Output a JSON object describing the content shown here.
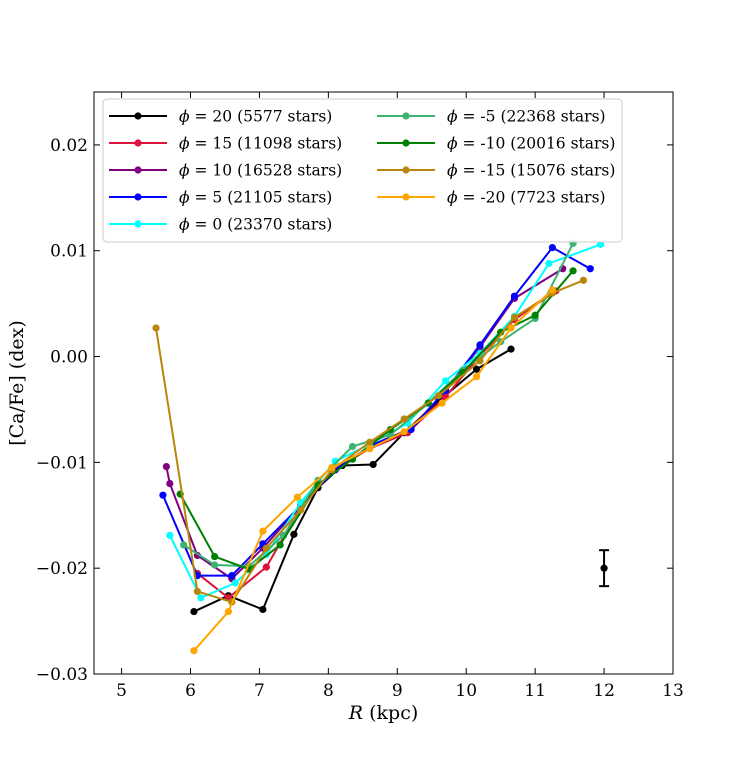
{
  "chart_data": {
    "type": "line",
    "title": "",
    "xlabel_var": "R",
    "xlabel_unit": "(kpc)",
    "ylabel": "[Ca/Fe] (dex)",
    "xlim": [
      4.6,
      13
    ],
    "ylim": [
      -0.03,
      0.025
    ],
    "xticks": [
      5,
      6,
      7,
      8,
      9,
      10,
      11,
      12,
      13
    ],
    "yticks": [
      -0.03,
      -0.02,
      -0.01,
      0.0,
      0.01,
      0.02
    ],
    "ytick_labels": [
      "−0.03",
      "−0.02",
      "−0.01",
      "0.00",
      "0.01",
      "0.02"
    ],
    "legend_position": "upper-left",
    "series": [
      {
        "name": "phi_20",
        "label_prefix": "ϕ = ",
        "label_value": "20 (5577 stars)",
        "color": "#000000",
        "points": [
          [
            6.05,
            -0.0241
          ],
          [
            6.55,
            -0.0226
          ],
          [
            7.05,
            -0.0239
          ],
          [
            7.5,
            -0.0168
          ],
          [
            7.85,
            -0.0124
          ],
          [
            8.2,
            -0.0103
          ],
          [
            8.65,
            -0.0102
          ],
          [
            9.1,
            -0.0072
          ],
          [
            9.6,
            -0.0042
          ],
          [
            10.15,
            -0.0012
          ],
          [
            10.65,
            0.0007
          ]
        ]
      },
      {
        "name": "phi_15",
        "label_prefix": "ϕ = ",
        "label_value": "15 (11098 stars)",
        "color": "#dc143c",
        "points": [
          [
            6.1,
            -0.0205
          ],
          [
            6.55,
            -0.0228
          ],
          [
            7.1,
            -0.0199
          ],
          [
            7.55,
            -0.0148
          ],
          [
            8.05,
            -0.0108
          ],
          [
            8.6,
            -0.0087
          ],
          [
            9.15,
            -0.0072
          ],
          [
            9.7,
            -0.0038
          ],
          [
            10.2,
            0.0001
          ],
          [
            10.7,
            0.0035
          ],
          [
            11.3,
            0.0062
          ]
        ]
      },
      {
        "name": "phi_10",
        "label_prefix": "ϕ = ",
        "label_value": "10 (16528 stars)",
        "color": "#800080",
        "points": [
          [
            5.65,
            -0.0104
          ],
          [
            5.7,
            -0.012
          ],
          [
            6.1,
            -0.0188
          ],
          [
            6.6,
            -0.021
          ],
          [
            7.05,
            -0.0181
          ],
          [
            7.6,
            -0.0141
          ],
          [
            8.1,
            -0.0107
          ],
          [
            8.65,
            -0.0083
          ],
          [
            9.2,
            -0.0068
          ],
          [
            9.7,
            -0.0032
          ],
          [
            10.2,
            0.0009
          ],
          [
            10.7,
            0.0055
          ],
          [
            11.4,
            0.0083
          ]
        ]
      },
      {
        "name": "phi_5",
        "label_prefix": "ϕ = ",
        "label_value": "5 (21105 stars)",
        "color": "#0000ff",
        "points": [
          [
            5.6,
            -0.0131
          ],
          [
            6.1,
            -0.0207
          ],
          [
            6.6,
            -0.0207
          ],
          [
            7.05,
            -0.0177
          ],
          [
            7.6,
            -0.0141
          ],
          [
            8.1,
            -0.0107
          ],
          [
            8.65,
            -0.0083
          ],
          [
            9.2,
            -0.0069
          ],
          [
            9.7,
            -0.0032
          ],
          [
            10.2,
            0.0011
          ],
          [
            10.7,
            0.0057
          ],
          [
            11.25,
            0.0103
          ],
          [
            11.8,
            0.0083
          ]
        ]
      },
      {
        "name": "phi_0",
        "label_prefix": "ϕ = ",
        "label_value": "0 (23370 stars)",
        "color": "#00ffff",
        "points": [
          [
            5.7,
            -0.0169
          ],
          [
            6.15,
            -0.0228
          ],
          [
            6.65,
            -0.0214
          ],
          [
            7.1,
            -0.0187
          ],
          [
            7.6,
            -0.0138
          ],
          [
            8.1,
            -0.0099
          ],
          [
            8.6,
            -0.0083
          ],
          [
            9.15,
            -0.0063
          ],
          [
            9.7,
            -0.0023
          ],
          [
            10.2,
            0.0003
          ],
          [
            10.7,
            0.0038
          ],
          [
            11.2,
            0.0088
          ],
          [
            11.95,
            0.0106
          ]
        ]
      },
      {
        "name": "phi_m5",
        "label_prefix": "ϕ = ",
        "label_value": "-5 (22368 stars)",
        "color": "#3cb371",
        "points": [
          [
            5.9,
            -0.0178
          ],
          [
            6.35,
            -0.0197
          ],
          [
            6.85,
            -0.0198
          ],
          [
            7.35,
            -0.0169
          ],
          [
            7.85,
            -0.0117
          ],
          [
            8.35,
            -0.0085
          ],
          [
            8.9,
            -0.0074
          ],
          [
            9.45,
            -0.0044
          ],
          [
            9.95,
            -0.0013
          ],
          [
            10.5,
            0.0014
          ],
          [
            11.0,
            0.0036
          ],
          [
            11.55,
            0.0107
          ]
        ]
      },
      {
        "name": "phi_m10",
        "label_prefix": "ϕ = ",
        "label_value": "-10 (20016 stars)",
        "color": "#008000",
        "points": [
          [
            5.85,
            -0.013
          ],
          [
            6.35,
            -0.0189
          ],
          [
            6.85,
            -0.0201
          ],
          [
            7.3,
            -0.0178
          ],
          [
            7.85,
            -0.0121
          ],
          [
            8.35,
            -0.0097
          ],
          [
            8.9,
            -0.0069
          ],
          [
            9.45,
            -0.0044
          ],
          [
            9.95,
            -0.0015
          ],
          [
            10.5,
            0.0023
          ],
          [
            11.0,
            0.0039
          ],
          [
            11.55,
            0.0081
          ]
        ]
      },
      {
        "name": "phi_m15",
        "label_prefix": "ϕ = ",
        "label_value": "-15 (15076 stars)",
        "color": "#b8860b",
        "points": [
          [
            5.5,
            0.0027
          ],
          [
            6.1,
            -0.0222
          ],
          [
            6.6,
            -0.0232
          ],
          [
            7.1,
            -0.0181
          ],
          [
            7.6,
            -0.0145
          ],
          [
            8.05,
            -0.0107
          ],
          [
            8.6,
            -0.0081
          ],
          [
            9.1,
            -0.0059
          ],
          [
            9.6,
            -0.0037
          ],
          [
            10.2,
            -0.0004
          ],
          [
            10.7,
            0.0037
          ],
          [
            11.25,
            0.006
          ],
          [
            11.7,
            0.0072
          ]
        ]
      },
      {
        "name": "phi_m20",
        "label_prefix": "ϕ = ",
        "label_value": "-20 (7723 stars)",
        "color": "#ffa500",
        "points": [
          [
            6.05,
            -0.0278
          ],
          [
            6.55,
            -0.0241
          ],
          [
            7.05,
            -0.0165
          ],
          [
            7.55,
            -0.0133
          ],
          [
            8.05,
            -0.0105
          ],
          [
            8.6,
            -0.0087
          ],
          [
            9.1,
            -0.0071
          ],
          [
            9.65,
            -0.0044
          ],
          [
            10.15,
            -0.0019
          ],
          [
            10.65,
            0.0027
          ],
          [
            11.25,
            0.0063
          ]
        ]
      }
    ],
    "error_bar": {
      "x": 12.0,
      "y": -0.02,
      "yerr": 0.0017,
      "color": "#000000"
    }
  }
}
